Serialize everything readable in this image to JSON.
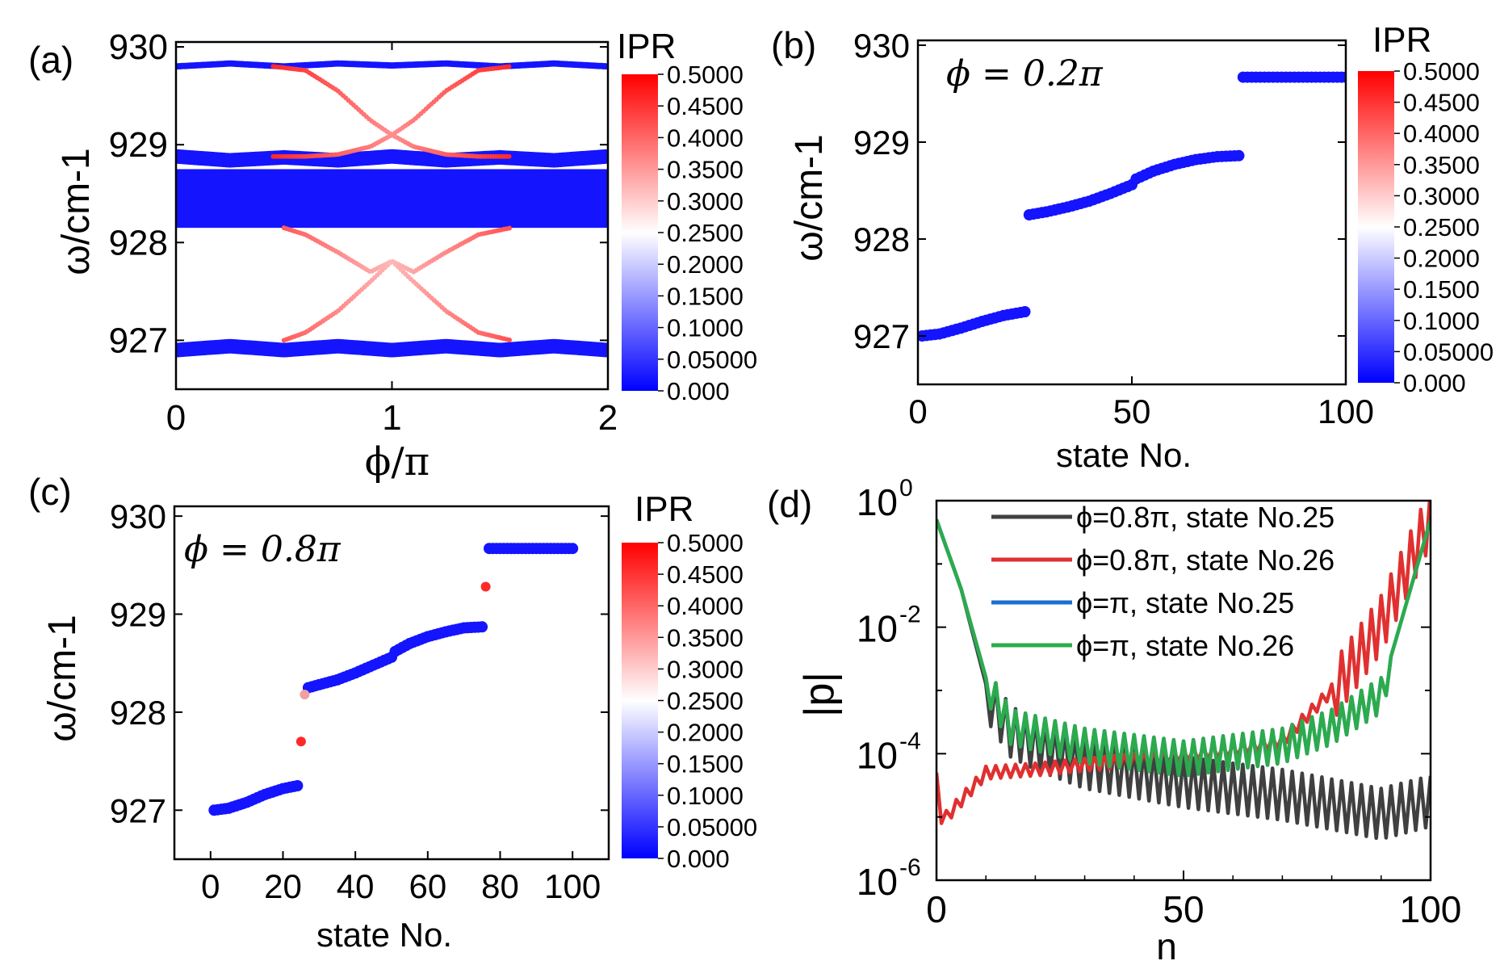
{
  "panels": {
    "a": {
      "label": "(a)",
      "ylabel": "ω/cm-1",
      "xlabel": "ϕ/π"
    },
    "b": {
      "label": "(b)",
      "ylabel": "ω/cm-1",
      "xlabel": "state No.",
      "annotation": "ϕ = 0.2π"
    },
    "c": {
      "label": "(c)",
      "ylabel": "ω/cm-1",
      "xlabel": "state No.",
      "annotation": "ϕ = 0.8π"
    },
    "d": {
      "label": "(d)",
      "ylabel": "|p|",
      "xlabel": "n"
    }
  },
  "colorbar": {
    "title": "IPR",
    "ticks": [
      "0.000",
      "0.05000",
      "0.1000",
      "0.1500",
      "0.2000",
      "0.2500",
      "0.3000",
      "0.3500",
      "0.4000",
      "0.4500",
      "0.5000"
    ],
    "colors": {
      "low": "#0000ff",
      "mid": "#ffffff",
      "high": "#ff0000"
    }
  },
  "chart_data": [
    {
      "panel": "a",
      "type": "scatter",
      "title": "",
      "xlabel": "ϕ/π",
      "ylabel": "ω/cm-1",
      "xlim": [
        0,
        2
      ],
      "ylim": [
        926.5,
        930.05
      ],
      "xticks": [
        "0",
        "1",
        "2"
      ],
      "yticks": [
        "927",
        "928",
        "929",
        "930"
      ],
      "bulk_band": {
        "ipr": 0.02,
        "omega_range": [
          928.15,
          928.75
        ]
      },
      "series": [
        {
          "name": "upper band",
          "ipr": 0.02,
          "x": [
            0,
            0.25,
            0.5,
            0.75,
            1.0,
            1.25,
            1.5,
            1.75,
            2.0
          ],
          "y": [
            929.8,
            929.83,
            929.8,
            929.83,
            929.81,
            929.83,
            929.8,
            929.83,
            929.8
          ]
        },
        {
          "name": "lower-upper band",
          "ipr": 0.02,
          "x": [
            0,
            0.25,
            0.5,
            0.75,
            1.0,
            1.25,
            1.5,
            1.75,
            2.0
          ],
          "y": [
            928.88,
            928.84,
            928.87,
            928.84,
            928.88,
            928.84,
            928.87,
            928.84,
            928.88
          ]
        },
        {
          "name": "bottom band",
          "ipr": 0.02,
          "x": [
            0,
            0.25,
            0.5,
            0.75,
            1.0,
            1.25,
            1.5,
            1.75,
            2.0
          ],
          "y": [
            926.9,
            926.94,
            926.9,
            926.94,
            926.9,
            926.94,
            926.9,
            926.94,
            926.9
          ]
        },
        {
          "name": "upper edge state 1",
          "ipr": 0.46,
          "x": [
            0.45,
            0.6,
            0.75,
            0.9,
            1.0,
            1.1,
            1.25,
            1.4,
            1.55
          ],
          "y": [
            929.8,
            929.76,
            929.55,
            929.25,
            929.1,
            928.98,
            928.9,
            928.88,
            928.88
          ]
        },
        {
          "name": "upper edge state 2",
          "ipr": 0.46,
          "x": [
            0.45,
            0.6,
            0.75,
            0.9,
            1.0,
            1.1,
            1.25,
            1.4,
            1.55
          ],
          "y": [
            928.88,
            928.88,
            928.9,
            928.98,
            929.1,
            929.25,
            929.55,
            929.76,
            929.8
          ]
        },
        {
          "name": "lower edge state 1",
          "ipr": 0.42,
          "x": [
            0.5,
            0.6,
            0.75,
            0.9,
            1.0,
            1.1,
            1.25,
            1.4,
            1.55
          ],
          "y": [
            928.15,
            928.08,
            927.9,
            927.7,
            927.81,
            927.6,
            927.3,
            927.08,
            927.0
          ]
        },
        {
          "name": "lower edge state 2",
          "ipr": 0.42,
          "x": [
            0.5,
            0.6,
            0.75,
            0.9,
            1.0,
            1.1,
            1.25,
            1.4,
            1.55
          ],
          "y": [
            927.0,
            927.08,
            927.3,
            927.6,
            927.81,
            927.7,
            927.9,
            928.08,
            928.15
          ]
        }
      ]
    },
    {
      "panel": "b",
      "type": "scatter",
      "title": "",
      "annotation": "ϕ = 0.2π",
      "xlabel": "state No.",
      "ylabel": "ω/cm-1",
      "xlim": [
        0,
        100
      ],
      "ylim": [
        926.5,
        930.05
      ],
      "xticks": [
        "0",
        "50",
        "100"
      ],
      "yticks": [
        "927",
        "928",
        "929",
        "930"
      ],
      "series": [
        {
          "name": "band 1",
          "ipr": 0.02,
          "x": [
            1,
            5,
            10,
            15,
            20,
            25
          ],
          "y": [
            927.0,
            927.02,
            927.08,
            927.15,
            927.21,
            927.25
          ]
        },
        {
          "name": "band 2",
          "ipr": 0.02,
          "x": [
            26,
            30,
            35,
            40,
            45,
            50
          ],
          "y": [
            928.25,
            928.28,
            928.33,
            928.39,
            928.47,
            928.56
          ]
        },
        {
          "name": "band 3",
          "ipr": 0.02,
          "x": [
            51,
            55,
            60,
            65,
            70,
            75
          ],
          "y": [
            928.62,
            928.7,
            928.77,
            928.82,
            928.85,
            928.86
          ]
        },
        {
          "name": "band 4",
          "ipr": 0.02,
          "x": [
            76,
            80,
            85,
            90,
            95,
            100
          ],
          "y": [
            929.67,
            929.67,
            929.67,
            929.67,
            929.67,
            929.67
          ]
        }
      ]
    },
    {
      "panel": "c",
      "type": "scatter",
      "title": "",
      "annotation": "ϕ = 0.8π",
      "xlabel": "state No.",
      "ylabel": "ω/cm-1",
      "xlim": [
        -10,
        110
      ],
      "ylim": [
        926.5,
        930.1
      ],
      "xticks": [
        "0",
        "20",
        "40",
        "60",
        "80",
        "100"
      ],
      "yticks": [
        "927",
        "928",
        "929",
        "930"
      ],
      "series": [
        {
          "name": "band 1",
          "ipr": 0.02,
          "x": [
            1,
            5,
            10,
            15,
            20,
            24
          ],
          "y": [
            927.0,
            927.02,
            927.08,
            927.16,
            927.22,
            927.25
          ]
        },
        {
          "name": "band 2",
          "ipr": 0.02,
          "x": [
            27,
            30,
            35,
            40,
            45,
            50
          ],
          "y": [
            928.25,
            928.28,
            928.33,
            928.4,
            928.48,
            928.56
          ]
        },
        {
          "name": "band 3",
          "ipr": 0.02,
          "x": [
            51,
            55,
            60,
            65,
            70,
            75
          ],
          "y": [
            928.62,
            928.7,
            928.77,
            928.82,
            928.86,
            928.87
          ]
        },
        {
          "name": "band 4",
          "ipr": 0.02,
          "x": [
            77,
            80,
            85,
            90,
            95,
            100
          ],
          "y": [
            929.67,
            929.67,
            929.67,
            929.67,
            929.67,
            929.67
          ]
        },
        {
          "name": "edge states",
          "ipr": 0.46,
          "x": [
            25,
            26,
            76
          ],
          "y": [
            927.7,
            928.18,
            929.28
          ]
        }
      ]
    },
    {
      "panel": "d",
      "type": "line",
      "title": "",
      "xlabel": "n",
      "ylabel": "|p|",
      "yscale": "log",
      "xlim": [
        0,
        100
      ],
      "ylim_exp": [
        -6,
        0
      ],
      "xticks": [
        "0",
        "50",
        "100"
      ],
      "yticks": [
        "10^0",
        "10^-2",
        "10^-4",
        "10^-6"
      ],
      "legend_position": "top-right",
      "series": [
        {
          "name": "ϕ=0.8π, state No.25",
          "color": "#404040",
          "profile": "left-localized, oscillating tail",
          "x": [
            0,
            5,
            10,
            15,
            20,
            30,
            50,
            70,
            90,
            100
          ],
          "log10_y": [
            -0.3,
            -1.4,
            -2.9,
            -3.5,
            -3.7,
            -4.0,
            -4.3,
            -4.5,
            -4.8,
            -4.6
          ]
        },
        {
          "name": "ϕ=0.8π, state No.26",
          "color": "#e03030",
          "profile": "right-localized",
          "x": [
            0,
            2,
            10,
            20,
            40,
            60,
            70,
            80,
            90,
            100
          ],
          "log10_y": [
            -4.4,
            -5.0,
            -4.3,
            -4.25,
            -4.1,
            -3.95,
            -3.8,
            -3.0,
            -1.9,
            -0.2
          ]
        },
        {
          "name": "ϕ=π, state No.25",
          "color": "#1a6fd0",
          "profile": "edge-localized both ends",
          "x": [
            0,
            5,
            10,
            15,
            30,
            50,
            70,
            80,
            90,
            100
          ],
          "log10_y": [
            -0.3,
            -1.4,
            -2.8,
            -3.5,
            -3.8,
            -4.0,
            -3.8,
            -3.5,
            -3.0,
            -0.3
          ]
        },
        {
          "name": "ϕ=π, state No.26",
          "color": "#2cab4c",
          "profile": "edge-localized both ends",
          "x": [
            0,
            5,
            10,
            15,
            30,
            50,
            70,
            80,
            90,
            100
          ],
          "log10_y": [
            -0.3,
            -1.4,
            -2.8,
            -3.5,
            -3.8,
            -4.0,
            -3.8,
            -3.5,
            -3.0,
            -0.3
          ]
        }
      ]
    }
  ]
}
